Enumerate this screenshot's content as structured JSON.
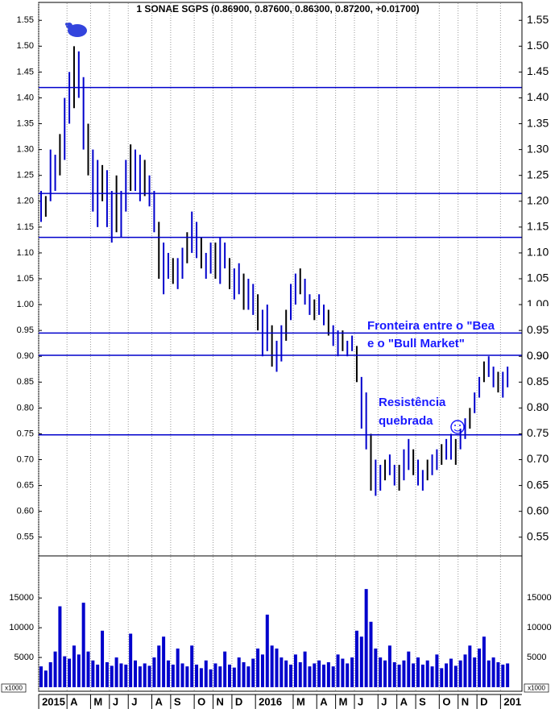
{
  "chart_data": {
    "type": "stock",
    "title": "1 SONAE SGPS (0.86900, 0.87600, 0.86300, 0.87200, +0.01700)",
    "color": "#0000cc",
    "categories": [
      "2015",
      null,
      null,
      null,
      null,
      null,
      "A",
      null,
      null,
      null,
      null,
      "M",
      null,
      null,
      null,
      "J",
      null,
      null,
      null,
      "J",
      null,
      null,
      null,
      null,
      "A",
      null,
      null,
      null,
      "S",
      null,
      null,
      null,
      null,
      "O",
      null,
      null,
      null,
      "N",
      null,
      null,
      null,
      "D",
      null,
      null,
      null,
      null,
      "2016",
      null,
      null,
      null,
      null,
      null,
      null,
      null,
      "M",
      null,
      null,
      null,
      null,
      "A",
      null,
      null,
      null,
      "M",
      null,
      null,
      null,
      "J",
      null,
      null,
      null,
      null,
      "J",
      null,
      null,
      null,
      "A",
      null,
      null,
      null,
      "S",
      null,
      null,
      null,
      null,
      "O",
      null,
      null,
      null,
      "N",
      null,
      null,
      null,
      "D",
      null,
      null,
      null,
      null,
      "201",
      null
    ],
    "high": [
      1.22,
      1.21,
      1.3,
      1.29,
      1.33,
      1.4,
      1.45,
      1.5,
      1.49,
      1.44,
      1.35,
      1.3,
      1.28,
      1.27,
      1.26,
      1.22,
      1.25,
      1.22,
      1.28,
      1.31,
      1.3,
      1.29,
      1.28,
      1.25,
      1.22,
      1.16,
      1.12,
      1.1,
      1.09,
      1.09,
      1.11,
      1.14,
      1.18,
      1.16,
      1.13,
      1.1,
      1.12,
      1.12,
      1.13,
      1.12,
      1.09,
      1.07,
      1.08,
      1.06,
      1.05,
      1.04,
      1.02,
      0.99,
      1.0,
      0.96,
      0.93,
      0.96,
      0.99,
      1.04,
      1.06,
      1.07,
      1.05,
      1.02,
      1.01,
      1.02,
      1.0,
      0.99,
      0.96,
      0.95,
      0.95,
      0.93,
      0.94,
      0.92,
      0.86,
      0.83,
      0.75,
      0.7,
      0.69,
      0.7,
      0.71,
      0.69,
      0.69,
      0.72,
      0.74,
      0.72,
      0.7,
      0.68,
      0.7,
      0.71,
      0.72,
      0.73,
      0.74,
      0.75,
      0.74,
      0.76,
      0.78,
      0.8,
      0.83,
      0.86,
      0.89,
      0.9,
      0.88,
      0.87,
      0.87,
      0.88
    ],
    "low": [
      1.16,
      1.17,
      1.2,
      1.22,
      1.25,
      1.28,
      1.35,
      1.38,
      1.4,
      1.3,
      1.25,
      1.18,
      1.15,
      1.2,
      1.15,
      1.12,
      1.14,
      1.13,
      1.18,
      1.22,
      1.22,
      1.2,
      1.21,
      1.19,
      1.14,
      1.05,
      1.02,
      1.05,
      1.04,
      1.03,
      1.05,
      1.08,
      1.1,
      1.09,
      1.07,
      1.05,
      1.06,
      1.05,
      1.04,
      1.07,
      1.03,
      1.01,
      1.02,
      0.99,
      0.99,
      0.98,
      0.95,
      0.9,
      0.91,
      0.88,
      0.87,
      0.89,
      0.93,
      0.97,
      1.0,
      1.02,
      1.0,
      0.98,
      0.97,
      0.98,
      0.96,
      0.94,
      0.92,
      0.9,
      0.91,
      0.9,
      0.91,
      0.85,
      0.76,
      0.72,
      0.64,
      0.63,
      0.64,
      0.66,
      0.67,
      0.65,
      0.64,
      0.66,
      0.68,
      0.67,
      0.65,
      0.64,
      0.66,
      0.67,
      0.68,
      0.69,
      0.7,
      0.7,
      0.69,
      0.72,
      0.74,
      0.76,
      0.79,
      0.82,
      0.85,
      0.86,
      0.84,
      0.83,
      0.82,
      0.84
    ],
    "ylim": [
      0.52,
      1.58
    ],
    "yticks": [
      {
        "value": 0.55,
        "label": "0.55"
      },
      {
        "value": 0.6,
        "label": "0.60"
      },
      {
        "value": 0.65,
        "label": "0.65"
      },
      {
        "value": 0.7,
        "label": "0.70"
      },
      {
        "value": 0.75,
        "label": "0.75"
      },
      {
        "value": 0.8,
        "label": "0.80"
      },
      {
        "value": 0.85,
        "label": "0.85"
      },
      {
        "value": 0.9,
        "label": "0.90"
      },
      {
        "value": 0.95,
        "label": "0.95"
      },
      {
        "value": 1.0,
        "label": "1.00"
      },
      {
        "value": 1.05,
        "label": "1.05"
      },
      {
        "value": 1.1,
        "label": "1.10"
      },
      {
        "value": 1.15,
        "label": "1.15"
      },
      {
        "value": 1.2,
        "label": "1.20"
      },
      {
        "value": 1.25,
        "label": "1.25"
      },
      {
        "value": 1.3,
        "label": "1.30"
      },
      {
        "value": 1.35,
        "label": "1.35"
      },
      {
        "value": 1.4,
        "label": "1.40"
      },
      {
        "value": 1.45,
        "label": "1.45"
      },
      {
        "value": 1.5,
        "label": "1.50"
      },
      {
        "value": 1.55,
        "label": "1.55"
      }
    ],
    "levels": {
      "values": [
        1.42,
        1.215,
        1.13,
        0.945,
        0.902,
        0.748
      ],
      "color": "#0000cc"
    },
    "annotations": [
      "Fronteira entre o \"Bea",
      "e o \"Bull Market\"",
      "Resistência",
      "quebrada"
    ],
    "volume": {
      "color": "#0000cc",
      "ylim": [
        0,
        21800
      ],
      "yticks": [
        5000,
        10000,
        15000
      ],
      "unit_label": "x1000",
      "values": [
        3500,
        2800,
        4200,
        6000,
        13600,
        5200,
        4800,
        7000,
        5500,
        14200,
        6000,
        4500,
        3800,
        9500,
        4200,
        3600,
        5000,
        4000,
        3800,
        9000,
        4500,
        3500,
        4000,
        3600,
        5000,
        7000,
        8500,
        4500,
        3800,
        6500,
        4000,
        3500,
        7000,
        3800,
        3200,
        4500,
        3000,
        4000,
        3500,
        6000,
        3800,
        3300,
        5000,
        4200,
        3500,
        4800,
        6500,
        5500,
        12200,
        7000,
        6500,
        5000,
        4500,
        3800,
        5500,
        4200,
        6000,
        3500,
        4000,
        4500,
        3800,
        4200,
        3500,
        5500,
        4800,
        4000,
        5000,
        9500,
        8500,
        16500,
        11000,
        6500,
        5000,
        4500,
        7000,
        4200,
        3800,
        4500,
        6000,
        4000,
        5000,
        3800,
        4500,
        3500,
        5500,
        3200,
        4000,
        4800,
        3600,
        4500,
        5500,
        7000,
        5000,
        6500,
        8500,
        4500,
        5000,
        4200,
        3800,
        4000
      ]
    }
  }
}
